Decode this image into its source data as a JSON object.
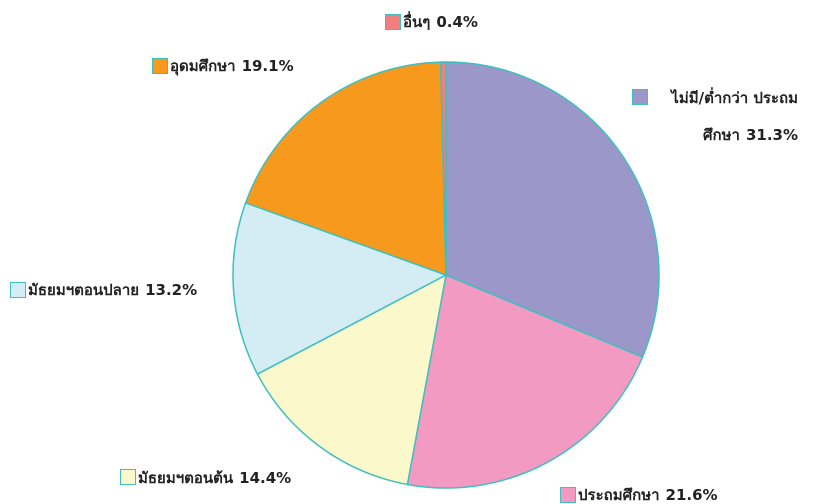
{
  "chart_data": {
    "type": "pie",
    "categories": [
      "ไม่มี/ต่ำกว่า ประถมศึกษา",
      "ประถมศึกษา",
      "มัธยมฯตอนต้น",
      "มัธยมฯตอนปลาย",
      "อุดมศึกษา",
      "อื่นๆ"
    ],
    "values": [
      31.3,
      21.6,
      14.4,
      13.2,
      19.1,
      0.4
    ],
    "value_labels": [
      "31.3%",
      "21.6%",
      "14.4%",
      "13.2%",
      "19.1%",
      "0.4%"
    ],
    "colors": [
      "#9b98c9",
      "#f39ac2",
      "#fbf8cc",
      "#d4ecf4",
      "#f7991c",
      "#f07f7f"
    ],
    "stroke": "#3fbfbf"
  }
}
